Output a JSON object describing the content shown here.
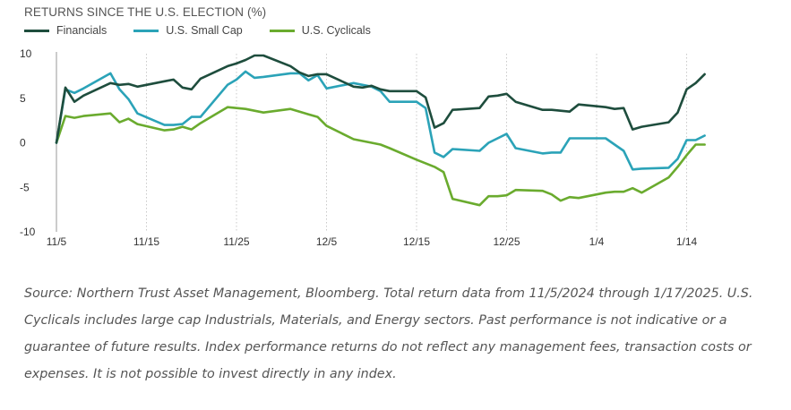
{
  "title": "RETURNS SINCE THE U.S. ELECTION (%)",
  "caption": "Source: Northern Trust Asset Management, Bloomberg. Total return data from 11/5/2024 through 1/17/2025. U.S. Cyclicals includes large cap Industrials, Materials, and Energy sectors. Past performance is not indicative or a guarantee of future results. Index performance returns do not reflect any management fees, transaction costs or expenses. It is not possible to invest directly in any index.",
  "colors": {
    "Financials": "#1e4d3d",
    "U.S. Small Cap": "#2ba3b8",
    "U.S. Cyclicals": "#6aab2e",
    "grid": "#c9c9c9"
  },
  "chart_data": {
    "type": "line",
    "title": "RETURNS SINCE THE U.S. ELECTION (%)",
    "xlabel": "",
    "ylabel": "",
    "legend_position": "top-left",
    "grid": "vertical at x ticks",
    "xlim": [
      0,
      74
    ],
    "ylim": [
      -10,
      10
    ],
    "y_ticks": [
      10,
      5,
      0,
      -5,
      -10
    ],
    "x_ticks": [
      {
        "label": "11/5",
        "x": 0
      },
      {
        "label": "11/15",
        "x": 10
      },
      {
        "label": "11/25",
        "x": 20
      },
      {
        "label": "12/5",
        "x": 30
      },
      {
        "label": "12/15",
        "x": 40
      },
      {
        "label": "12/25",
        "x": 50
      },
      {
        "label": "1/4",
        "x": 60
      },
      {
        "label": "1/14",
        "x": 70
      }
    ],
    "x": [
      0,
      1,
      2,
      3,
      6,
      7,
      8,
      9,
      12,
      13,
      14,
      15,
      16,
      19,
      20,
      21,
      22,
      23,
      26,
      27,
      28,
      29,
      30,
      33,
      34,
      35,
      36,
      37,
      40,
      41,
      42,
      43,
      44,
      47,
      48,
      49,
      50,
      51,
      54,
      55,
      56,
      57,
      58,
      61,
      62,
      63,
      64,
      65,
      68,
      69,
      70,
      71,
      72
    ],
    "series": [
      {
        "name": "Financials",
        "values": [
          0,
          6.2,
          4.6,
          5.3,
          6.7,
          6.5,
          6.6,
          6.3,
          6.9,
          7.1,
          6.2,
          6.0,
          7.2,
          8.6,
          8.9,
          9.3,
          9.8,
          9.8,
          8.6,
          7.9,
          7.5,
          7.7,
          7.7,
          6.3,
          6.2,
          6.4,
          6.0,
          5.8,
          5.8,
          5.1,
          1.7,
          2.2,
          3.7,
          3.9,
          5.2,
          5.3,
          5.5,
          4.6,
          3.7,
          3.7,
          3.6,
          3.5,
          4.3,
          4.0,
          3.8,
          3.9,
          1.5,
          1.8,
          2.3,
          3.4,
          6.0,
          6.7,
          7.7
        ]
      },
      {
        "name": "U.S. Small Cap",
        "values": [
          0,
          6.0,
          5.6,
          6.1,
          7.8,
          6.0,
          4.9,
          3.3,
          2.0,
          2.0,
          2.1,
          2.9,
          2.9,
          6.5,
          7.1,
          8.0,
          7.3,
          7.4,
          7.8,
          7.8,
          7.0,
          7.6,
          6.1,
          6.7,
          6.5,
          6.3,
          5.8,
          4.6,
          4.6,
          3.9,
          -1.1,
          -1.6,
          -0.7,
          -0.9,
          0.0,
          0.5,
          1.0,
          -0.6,
          -1.2,
          -1.1,
          -1.1,
          0.5,
          0.5,
          0.5,
          -0.2,
          -0.9,
          -3.0,
          -2.9,
          -2.8,
          -1.8,
          0.3,
          0.3,
          0.8
        ]
      },
      {
        "name": "U.S. Cyclicals",
        "values": [
          0,
          3.0,
          2.8,
          3.0,
          3.3,
          2.3,
          2.7,
          2.1,
          1.4,
          1.5,
          1.8,
          1.5,
          2.2,
          4.0,
          3.9,
          3.8,
          3.6,
          3.4,
          3.8,
          3.5,
          3.2,
          2.9,
          1.9,
          0.4,
          0.2,
          0.0,
          -0.2,
          -0.6,
          -1.9,
          -2.3,
          -2.7,
          -3.3,
          -6.3,
          -7.0,
          -6.0,
          -6.0,
          -5.9,
          -5.3,
          -5.4,
          -5.8,
          -6.5,
          -6.1,
          -6.2,
          -5.6,
          -5.5,
          -5.5,
          -5.1,
          -5.6,
          -3.9,
          -2.7,
          -1.4,
          -0.2,
          -0.2
        ]
      }
    ]
  }
}
